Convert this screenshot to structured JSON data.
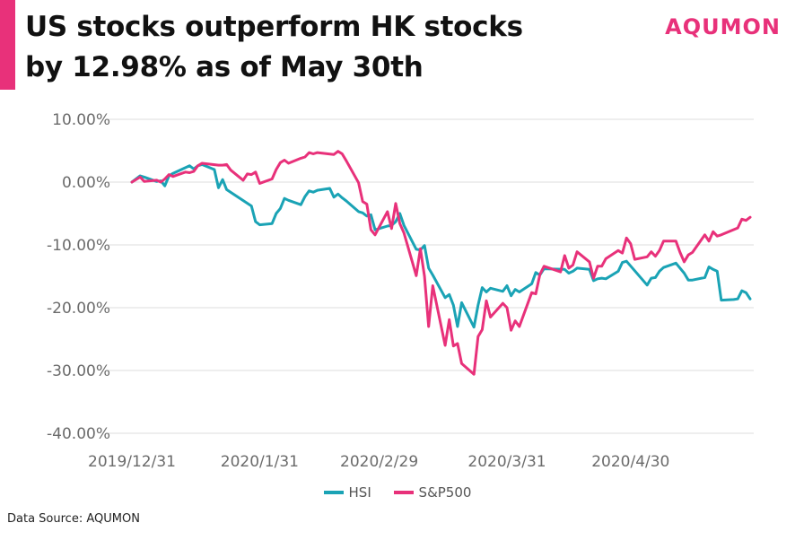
{
  "header": {
    "title": "US stocks outperform HK stocks by 12.98% as of May 30th",
    "brand": "AQUMON"
  },
  "footer": {
    "source": "Data Source: AQUMON"
  },
  "colors": {
    "accent": "#e8317a",
    "hsi": "#1aa3b5",
    "sp500": "#e8317a",
    "grid": "#dcdcdc"
  },
  "chart_data": {
    "type": "line",
    "y_format": "percent",
    "ylim": [
      -40,
      10
    ],
    "y_ticks": [
      "10.00%",
      "0.00%",
      "-10.00%",
      "-20.00%",
      "-30.00%",
      "-40.00%"
    ],
    "y_tick_values": [
      10,
      0,
      -10,
      -20,
      -30,
      -40
    ],
    "x_tick_labels": [
      "2019/12/31",
      "2020/1/31",
      "2020/2/29",
      "2020/3/31",
      "2020/4/30"
    ],
    "x_tick_dates": [
      "2019-12-31",
      "2020-01-31",
      "2020-02-29",
      "2020-03-31",
      "2020-04-30"
    ],
    "grid": true,
    "legend_position": "bottom",
    "series": [
      {
        "name": "HSI",
        "color": "#1aa3b5",
        "points": [
          [
            "2019-12-31",
            0
          ],
          [
            "2020-01-02",
            1.0
          ],
          [
            "2020-01-03",
            0.8
          ],
          [
            "2020-01-06",
            0.1
          ],
          [
            "2020-01-07",
            0.2
          ],
          [
            "2020-01-08",
            -0.6
          ],
          [
            "2020-01-09",
            1.0
          ],
          [
            "2020-01-10",
            1.4
          ],
          [
            "2020-01-13",
            2.3
          ],
          [
            "2020-01-14",
            2.6
          ],
          [
            "2020-01-15",
            2.1
          ],
          [
            "2020-01-16",
            2.6
          ],
          [
            "2020-01-17",
            2.8
          ],
          [
            "2020-01-20",
            2.0
          ],
          [
            "2020-01-21",
            -0.9
          ],
          [
            "2020-01-22",
            0.4
          ],
          [
            "2020-01-23",
            -1.2
          ],
          [
            "2020-01-29",
            -3.8
          ],
          [
            "2020-01-30",
            -6.3
          ],
          [
            "2020-01-31",
            -6.8
          ],
          [
            "2020-02-03",
            -6.6
          ],
          [
            "2020-02-04",
            -5.0
          ],
          [
            "2020-02-05",
            -4.2
          ],
          [
            "2020-02-06",
            -2.6
          ],
          [
            "2020-02-07",
            -2.9
          ],
          [
            "2020-02-10",
            -3.6
          ],
          [
            "2020-02-11",
            -2.3
          ],
          [
            "2020-02-12",
            -1.4
          ],
          [
            "2020-02-13",
            -1.6
          ],
          [
            "2020-02-14",
            -1.3
          ],
          [
            "2020-02-17",
            -1.0
          ],
          [
            "2020-02-18",
            -2.4
          ],
          [
            "2020-02-19",
            -1.9
          ],
          [
            "2020-02-20",
            -2.5
          ],
          [
            "2020-02-21",
            -3.0
          ],
          [
            "2020-02-24",
            -4.7
          ],
          [
            "2020-02-25",
            -4.9
          ],
          [
            "2020-02-26",
            -5.4
          ],
          [
            "2020-02-27",
            -5.2
          ],
          [
            "2020-02-28",
            -7.6
          ],
          [
            "2020-03-02",
            -7.0
          ],
          [
            "2020-03-03",
            -6.9
          ],
          [
            "2020-03-04",
            -6.3
          ],
          [
            "2020-03-05",
            -5.0
          ],
          [
            "2020-03-06",
            -6.9
          ],
          [
            "2020-03-09",
            -10.7
          ],
          [
            "2020-03-10",
            -10.8
          ],
          [
            "2020-03-11",
            -10.1
          ],
          [
            "2020-03-12",
            -13.7
          ],
          [
            "2020-03-13",
            -14.8
          ],
          [
            "2020-03-16",
            -18.4
          ],
          [
            "2020-03-17",
            -17.9
          ],
          [
            "2020-03-18",
            -19.6
          ],
          [
            "2020-03-19",
            -23.0
          ],
          [
            "2020-03-20",
            -19.2
          ],
          [
            "2020-03-23",
            -23.1
          ],
          [
            "2020-03-24",
            -19.6
          ],
          [
            "2020-03-25",
            -16.8
          ],
          [
            "2020-03-26",
            -17.5
          ],
          [
            "2020-03-27",
            -16.9
          ],
          [
            "2020-03-30",
            -17.4
          ],
          [
            "2020-03-31",
            -16.5
          ],
          [
            "2020-04-01",
            -18.1
          ],
          [
            "2020-04-02",
            -17.1
          ],
          [
            "2020-04-03",
            -17.5
          ],
          [
            "2020-04-06",
            -16.2
          ],
          [
            "2020-04-07",
            -14.4
          ],
          [
            "2020-04-08",
            -14.8
          ],
          [
            "2020-04-09",
            -13.8
          ],
          [
            "2020-04-14",
            -13.9
          ],
          [
            "2020-04-15",
            -14.5
          ],
          [
            "2020-04-16",
            -14.2
          ],
          [
            "2020-04-17",
            -13.7
          ],
          [
            "2020-04-20",
            -13.9
          ],
          [
            "2020-04-21",
            -15.7
          ],
          [
            "2020-04-22",
            -15.4
          ],
          [
            "2020-04-23",
            -15.3
          ],
          [
            "2020-04-24",
            -15.4
          ],
          [
            "2020-04-27",
            -14.2
          ],
          [
            "2020-04-28",
            -12.8
          ],
          [
            "2020-04-29",
            -12.6
          ],
          [
            "2020-05-04",
            -16.4
          ],
          [
            "2020-05-05",
            -15.3
          ],
          [
            "2020-05-06",
            -15.2
          ],
          [
            "2020-05-07",
            -14.2
          ],
          [
            "2020-05-08",
            -13.6
          ],
          [
            "2020-05-11",
            -12.9
          ],
          [
            "2020-05-12",
            -13.7
          ],
          [
            "2020-05-13",
            -14.5
          ],
          [
            "2020-05-14",
            -15.6
          ],
          [
            "2020-05-15",
            -15.6
          ],
          [
            "2020-05-18",
            -15.2
          ],
          [
            "2020-05-19",
            -13.5
          ],
          [
            "2020-05-20",
            -13.9
          ],
          [
            "2020-05-21",
            -14.2
          ],
          [
            "2020-05-22",
            -18.8
          ],
          [
            "2020-05-25",
            -18.7
          ],
          [
            "2020-05-26",
            -18.6
          ],
          [
            "2020-05-27",
            -17.3
          ],
          [
            "2020-05-28",
            -17.6
          ],
          [
            "2020-05-29",
            -18.6
          ]
        ]
      },
      {
        "name": "S&P500",
        "color": "#e8317a",
        "points": [
          [
            "2019-12-31",
            0
          ],
          [
            "2020-01-02",
            0.8
          ],
          [
            "2020-01-03",
            0.1
          ],
          [
            "2020-01-06",
            0.3
          ],
          [
            "2020-01-07",
            0.0
          ],
          [
            "2020-01-08",
            0.5
          ],
          [
            "2020-01-09",
            1.2
          ],
          [
            "2020-01-10",
            0.9
          ],
          [
            "2020-01-13",
            1.6
          ],
          [
            "2020-01-14",
            1.5
          ],
          [
            "2020-01-15",
            1.7
          ],
          [
            "2020-01-16",
            2.6
          ],
          [
            "2020-01-17",
            3.0
          ],
          [
            "2020-01-21",
            2.7
          ],
          [
            "2020-01-22",
            2.7
          ],
          [
            "2020-01-23",
            2.8
          ],
          [
            "2020-01-24",
            1.9
          ],
          [
            "2020-01-27",
            0.3
          ],
          [
            "2020-01-28",
            1.3
          ],
          [
            "2020-01-29",
            1.2
          ],
          [
            "2020-01-30",
            1.6
          ],
          [
            "2020-01-31",
            -0.2
          ],
          [
            "2020-02-03",
            0.5
          ],
          [
            "2020-02-04",
            2.0
          ],
          [
            "2020-02-05",
            3.1
          ],
          [
            "2020-02-06",
            3.5
          ],
          [
            "2020-02-07",
            3.0
          ],
          [
            "2020-02-10",
            3.8
          ],
          [
            "2020-02-11",
            4.0
          ],
          [
            "2020-02-12",
            4.7
          ],
          [
            "2020-02-13",
            4.5
          ],
          [
            "2020-02-14",
            4.7
          ],
          [
            "2020-02-18",
            4.4
          ],
          [
            "2020-02-19",
            4.9
          ],
          [
            "2020-02-20",
            4.5
          ],
          [
            "2020-02-21",
            3.4
          ],
          [
            "2020-02-24",
            -0.1
          ],
          [
            "2020-02-25",
            -3.1
          ],
          [
            "2020-02-26",
            -3.5
          ],
          [
            "2020-02-27",
            -7.6
          ],
          [
            "2020-02-28",
            -8.4
          ],
          [
            "2020-03-02",
            -4.7
          ],
          [
            "2020-03-03",
            -7.4
          ],
          [
            "2020-03-04",
            -3.4
          ],
          [
            "2020-03-05",
            -6.6
          ],
          [
            "2020-03-06",
            -8.1
          ],
          [
            "2020-03-09",
            -14.9
          ],
          [
            "2020-03-10",
            -10.6
          ],
          [
            "2020-03-11",
            -15.0
          ],
          [
            "2020-03-12",
            -23.0
          ],
          [
            "2020-03-13",
            -16.5
          ],
          [
            "2020-03-16",
            -26.0
          ],
          [
            "2020-03-17",
            -21.9
          ],
          [
            "2020-03-18",
            -26.1
          ],
          [
            "2020-03-19",
            -25.7
          ],
          [
            "2020-03-20",
            -28.9
          ],
          [
            "2020-03-23",
            -30.6
          ],
          [
            "2020-03-24",
            -24.6
          ],
          [
            "2020-03-25",
            -23.5
          ],
          [
            "2020-03-26",
            -18.9
          ],
          [
            "2020-03-27",
            -21.5
          ],
          [
            "2020-03-30",
            -19.3
          ],
          [
            "2020-03-31",
            -20.0
          ],
          [
            "2020-04-01",
            -23.6
          ],
          [
            "2020-04-02",
            -22.1
          ],
          [
            "2020-04-03",
            -23.0
          ],
          [
            "2020-04-06",
            -17.6
          ],
          [
            "2020-04-07",
            -17.8
          ],
          [
            "2020-04-08",
            -14.7
          ],
          [
            "2020-04-09",
            -13.4
          ],
          [
            "2020-04-13",
            -14.3
          ],
          [
            "2020-04-14",
            -11.7
          ],
          [
            "2020-04-15",
            -13.7
          ],
          [
            "2020-04-16",
            -13.2
          ],
          [
            "2020-04-17",
            -11.1
          ],
          [
            "2020-04-20",
            -12.7
          ],
          [
            "2020-04-21",
            -15.3
          ],
          [
            "2020-04-22",
            -13.4
          ],
          [
            "2020-04-23",
            -13.4
          ],
          [
            "2020-04-24",
            -12.2
          ],
          [
            "2020-04-27",
            -10.9
          ],
          [
            "2020-04-28",
            -11.3
          ],
          [
            "2020-04-29",
            -8.9
          ],
          [
            "2020-04-30",
            -9.8
          ],
          [
            "2020-05-01",
            -12.3
          ],
          [
            "2020-05-04",
            -11.9
          ],
          [
            "2020-05-05",
            -11.1
          ],
          [
            "2020-05-06",
            -11.8
          ],
          [
            "2020-05-07",
            -10.9
          ],
          [
            "2020-05-08",
            -9.4
          ],
          [
            "2020-05-11",
            -9.4
          ],
          [
            "2020-05-12",
            -11.2
          ],
          [
            "2020-05-13",
            -12.7
          ],
          [
            "2020-05-14",
            -11.6
          ],
          [
            "2020-05-15",
            -11.2
          ],
          [
            "2020-05-18",
            -8.4
          ],
          [
            "2020-05-19",
            -9.4
          ],
          [
            "2020-05-20",
            -7.9
          ],
          [
            "2020-05-21",
            -8.6
          ],
          [
            "2020-05-22",
            -8.4
          ],
          [
            "2020-05-26",
            -7.3
          ],
          [
            "2020-05-27",
            -5.9
          ],
          [
            "2020-05-28",
            -6.1
          ],
          [
            "2020-05-29",
            -5.6
          ]
        ]
      }
    ]
  }
}
